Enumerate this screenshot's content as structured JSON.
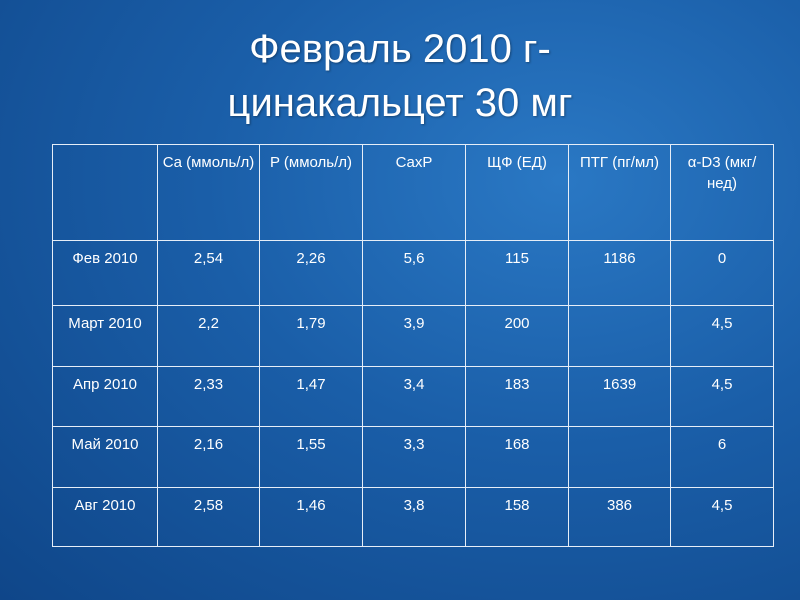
{
  "title": {
    "lines": [
      "Февраль 2010 г-",
      "цинакальцет 30 мг"
    ]
  },
  "table": {
    "header": [
      null,
      "Ca (ммоль/л)",
      "P (ммоль/л)",
      "CaxP",
      "ЩФ (ЕД)",
      "ПТГ (пг/мл)",
      "α-D3 (мкг/нед)"
    ],
    "rows": [
      [
        "Фев 2010",
        "2,54",
        "2,26",
        "5,6",
        "115",
        "1186",
        "0"
      ],
      [
        "Март 2010",
        "2,2",
        "1,79",
        "3,9",
        "200",
        null,
        "4,5"
      ],
      [
        "Апр 2010",
        "2,33",
        "1,47",
        "3,4",
        "183",
        "1639",
        "4,5"
      ],
      [
        "Май 2010",
        "2,16",
        "1,55",
        "3,3",
        "168",
        null,
        "6"
      ],
      [
        "Авг 2010",
        "2,58",
        "1,46",
        "3,8",
        "158",
        "386",
        "4,5"
      ]
    ]
  }
}
